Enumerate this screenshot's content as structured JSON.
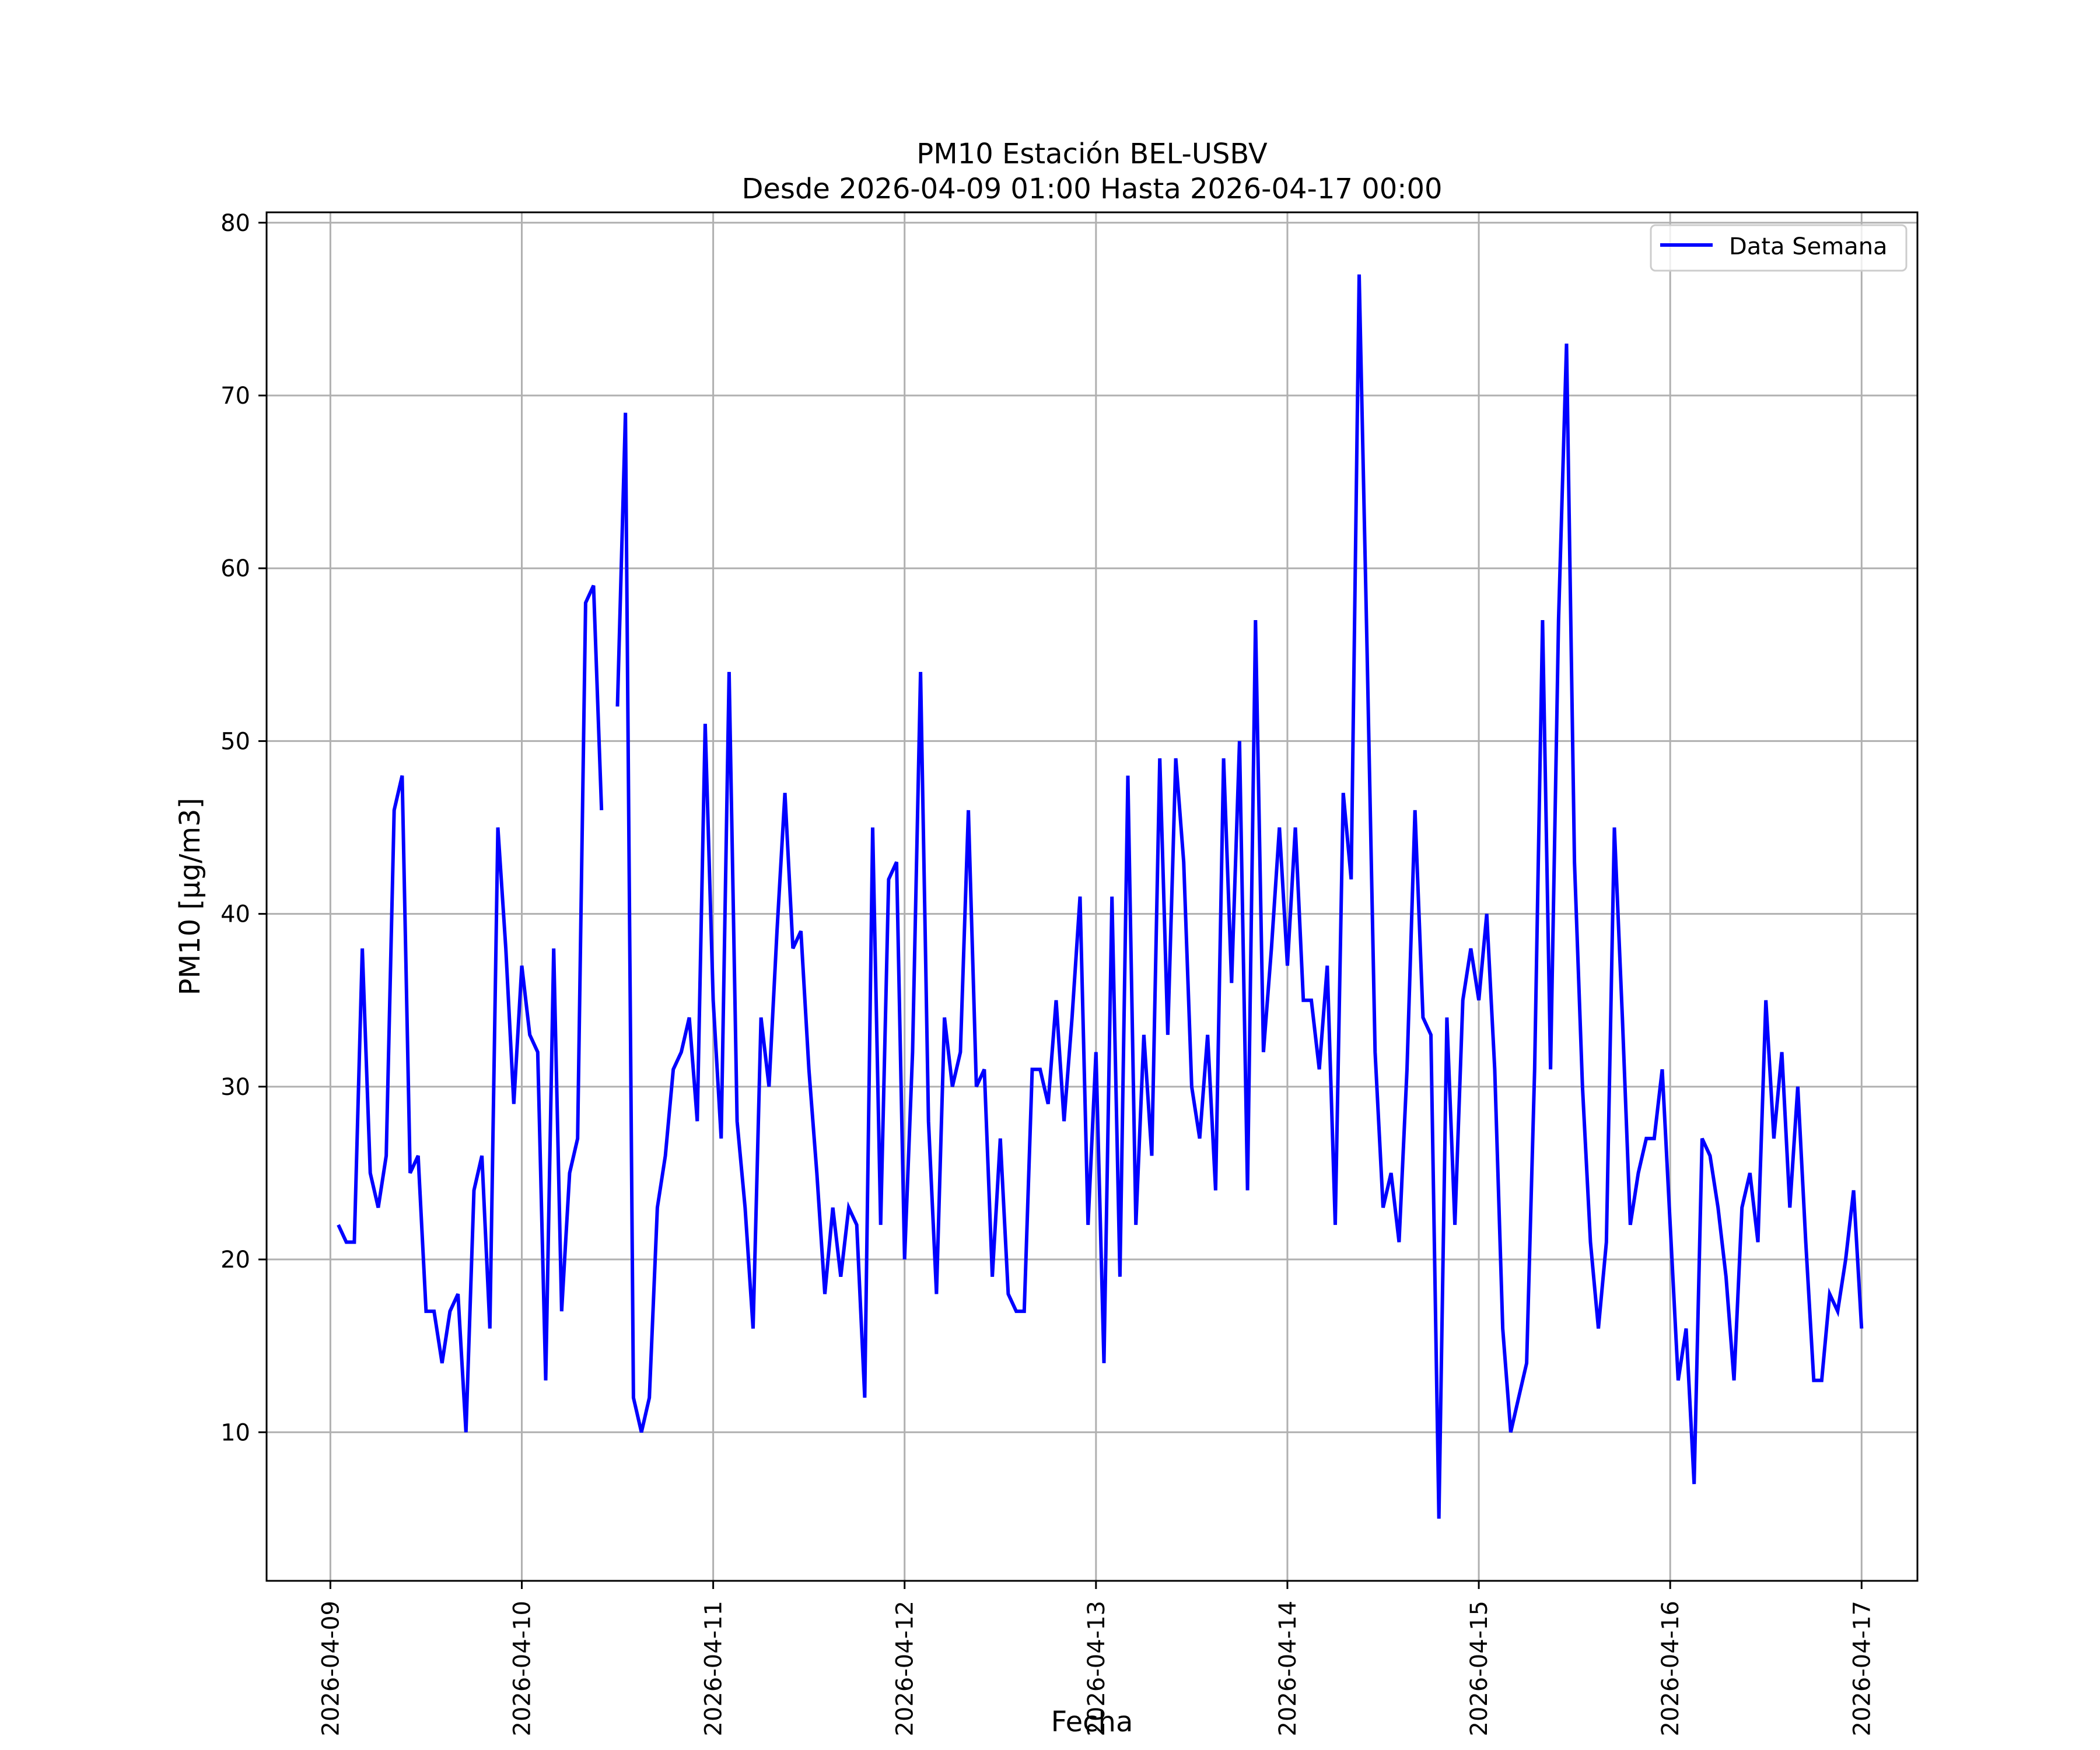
{
  "colors": {
    "series": "#0000ff",
    "grid": "#b0b0b0",
    "axes": "#000000",
    "background": "#ffffff"
  },
  "chart_data": {
    "type": "line",
    "title": "PM10 Estación BEL-USBV",
    "subtitle": "Desde 2026-04-09 01:00 Hasta 2026-04-17 00:00",
    "xlabel": "Fecha",
    "ylabel": "PM10 [μg/m3]",
    "x_start": "2026-04-09 01:00",
    "x_step_hours": 1,
    "xlim": [
      "2026-04-08 16:00",
      "2026-04-17 07:00"
    ],
    "ylim": [
      1.4,
      80.6
    ],
    "x_ticks": [
      "2026-04-09",
      "2026-04-10",
      "2026-04-11",
      "2026-04-12",
      "2026-04-13",
      "2026-04-14",
      "2026-04-15",
      "2026-04-16",
      "2026-04-17"
    ],
    "y_ticks": [
      10,
      20,
      30,
      40,
      50,
      60,
      70,
      80
    ],
    "grid": true,
    "legend_position": "top-right",
    "series": [
      {
        "name": "Data Semana",
        "values": [
          22,
          21,
          21,
          38,
          25,
          23,
          26,
          46,
          48,
          25,
          26,
          17,
          17,
          14,
          17,
          18,
          10,
          24,
          26,
          16,
          45,
          38,
          29,
          37,
          33,
          32,
          13,
          38,
          17,
          25,
          27,
          58,
          59,
          46,
          null,
          52,
          69,
          12,
          10,
          12,
          23,
          26,
          31,
          32,
          34,
          28,
          51,
          35,
          27,
          54,
          28,
          23,
          16,
          34,
          30,
          39,
          47,
          38,
          39,
          31,
          25,
          18,
          23,
          19,
          23,
          22,
          12,
          45,
          22,
          42,
          43,
          20,
          32,
          54,
          28,
          18,
          34,
          30,
          32,
          46,
          30,
          31,
          19,
          27,
          18,
          17,
          17,
          31,
          31,
          29,
          35,
          28,
          34,
          41,
          22,
          32,
          14,
          41,
          19,
          48,
          22,
          33,
          26,
          49,
          33,
          49,
          43,
          30,
          27,
          33,
          24,
          49,
          36,
          50,
          24,
          57,
          32,
          38,
          45,
          37,
          45,
          35,
          35,
          31,
          37,
          22,
          47,
          42,
          77,
          55,
          32,
          23,
          25,
          21,
          31,
          46,
          34,
          33,
          5,
          34,
          22,
          35,
          38,
          35,
          40,
          31,
          16,
          10,
          12,
          14,
          31,
          57,
          31,
          57,
          73,
          43,
          30,
          21,
          16,
          21,
          45,
          34,
          22,
          25,
          27,
          27,
          31,
          22,
          13,
          16,
          7,
          27,
          26,
          23,
          19,
          13,
          23,
          25,
          21,
          35,
          27,
          32,
          23,
          30,
          21,
          13,
          13,
          18,
          17,
          20,
          24,
          16
        ]
      }
    ]
  }
}
